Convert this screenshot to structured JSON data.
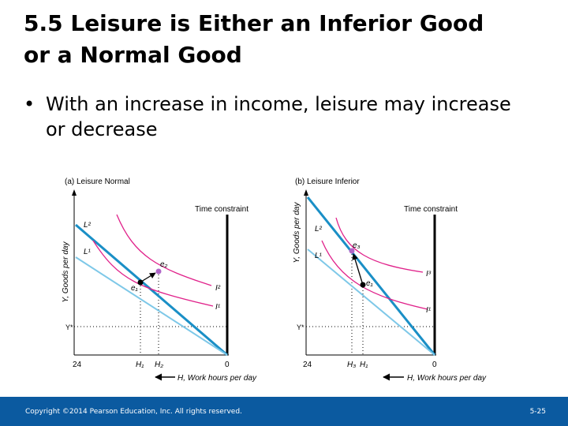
{
  "slide": {
    "title_line1": "5.5 Leisure is Either an Inferior Good",
    "title_line2": "or a Normal Good",
    "bullet": "With an increase in income, leisure may increase or decrease",
    "bullet_marker": "•"
  },
  "panel_a": {
    "title": "(a) Leisure Normal",
    "y_axis_label": "Y, Goods per day",
    "x_axis_label": "H, Work hours per day",
    "time_constraint": "Time constraint",
    "l2": "L²",
    "l1": "L¹",
    "i2": "I²",
    "i1": "I¹",
    "y_star": "Y*",
    "e1": "e₁",
    "e2": "e₂",
    "x_24": "24",
    "x_h1": "H₁",
    "x_h2": "H₂",
    "x_0": "0"
  },
  "panel_b": {
    "title": "(b) Leisure Inferior",
    "y_axis_label": "Y, Goods per day",
    "x_axis_label": "H, Work hours per day",
    "time_constraint": "Time constraint",
    "l2": "L²",
    "l1": "L¹",
    "i3": "I³",
    "i1": "I¹",
    "y_star": "Y*",
    "e3": "e₃",
    "e1": "e₁",
    "x_24": "24",
    "x_h3": "H₃",
    "x_h1": "H₁",
    "x_0": "0"
  },
  "colors": {
    "budget_high": "#1a8fc6",
    "budget_low": "#7ec8e8",
    "indifference": "#e0218a",
    "footer_bg": "#0b5aa0"
  },
  "footer": {
    "copyright": "Copyright ©2014 Pearson Education, Inc. All rights reserved.",
    "slide_number": "5-25"
  }
}
